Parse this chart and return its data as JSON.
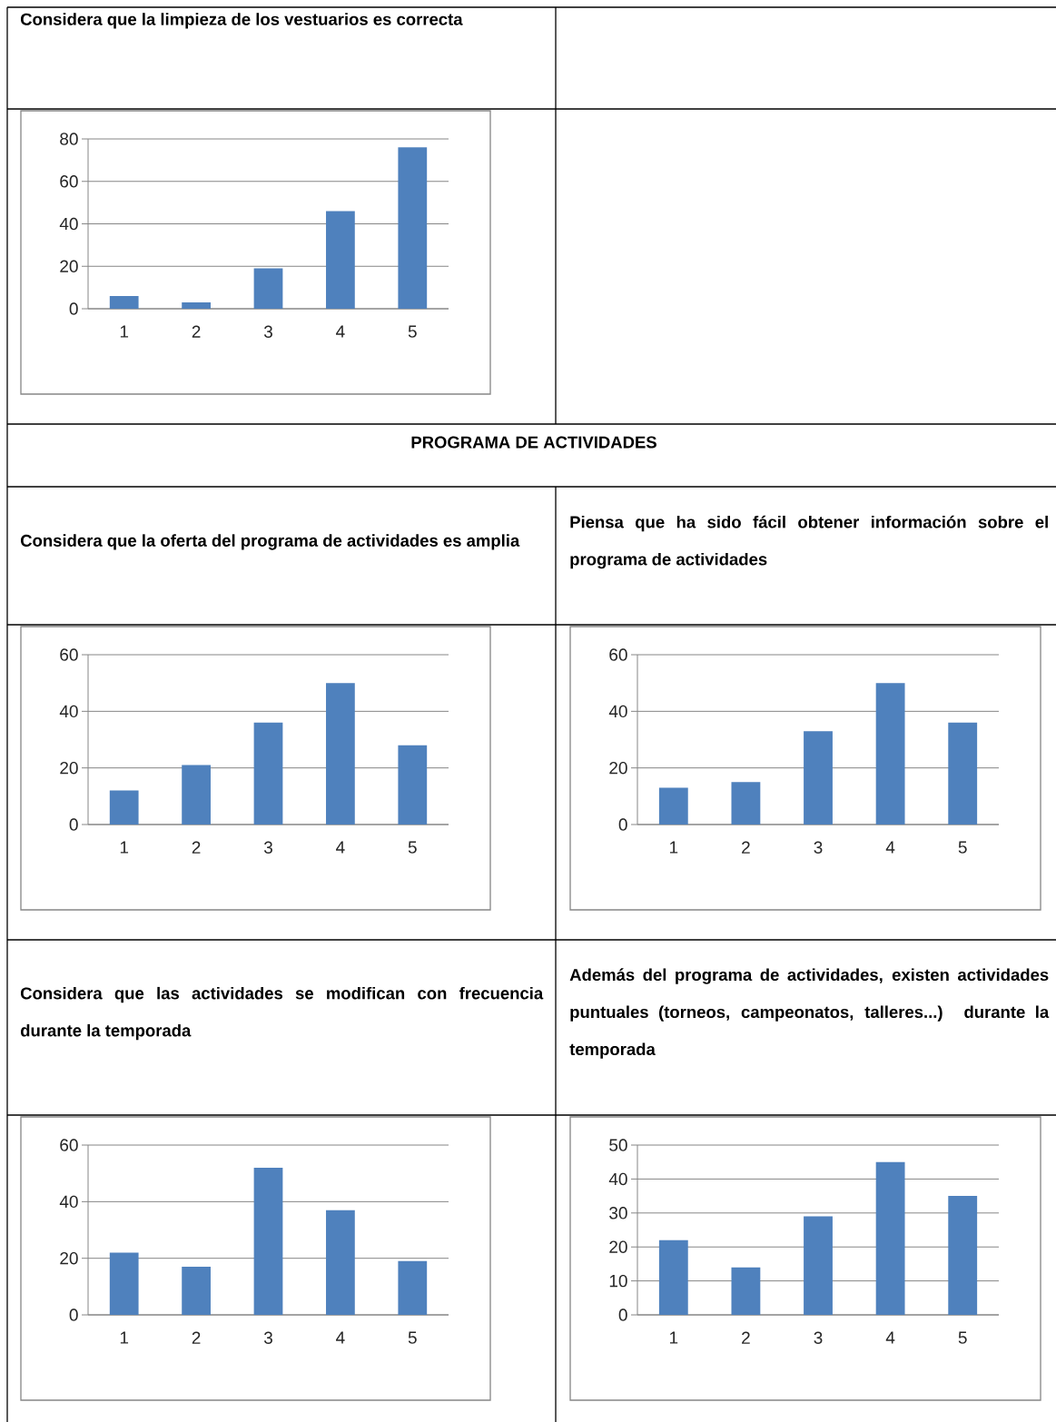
{
  "chart_data": [
    {
      "type": "bar",
      "title": "Considera que la limpieza de los vestuarios es correcta",
      "categories": [
        "1",
        "2",
        "3",
        "4",
        "5"
      ],
      "values": [
        6,
        3,
        19,
        46,
        76
      ],
      "color": "#4f81bd",
      "ylim": [
        0,
        80
      ],
      "yticks": [
        0,
        20,
        40,
        60,
        80
      ],
      "grid": "y"
    },
    {
      "type": "bar",
      "title": "Considera que la oferta del programa de actividades es amplia",
      "annotations": [
        "PROGRAMA DE ACTIVIDADES"
      ],
      "categories": [
        "1",
        "2",
        "3",
        "4",
        "5"
      ],
      "values": [
        12,
        21,
        36,
        50,
        28
      ],
      "color": "#4f81bd",
      "ylim": [
        0,
        60
      ],
      "yticks": [
        0,
        20,
        40,
        60
      ],
      "grid": "y"
    },
    {
      "type": "bar",
      "title": "Piensa que ha sido fácil obtener información sobre el programa de actividades",
      "categories": [
        "1",
        "2",
        "3",
        "4",
        "5"
      ],
      "values": [
        13,
        15,
        33,
        50,
        36
      ],
      "color": "#4f81bd",
      "ylim": [
        0,
        60
      ],
      "yticks": [
        0,
        20,
        40,
        60
      ],
      "grid": "y"
    },
    {
      "type": "bar",
      "title": "Considera que las actividades se modifican con frecuencia durante la temporada",
      "categories": [
        "1",
        "2",
        "3",
        "4",
        "5"
      ],
      "values": [
        22,
        17,
        52,
        37,
        19
      ],
      "color": "#4f81bd",
      "ylim": [
        0,
        60
      ],
      "yticks": [
        0,
        20,
        40,
        60
      ],
      "grid": "y"
    },
    {
      "type": "bar",
      "title": "Además del programa de actividades, existen actividades puntuales (torneos, campeonatos, talleres...) durante la temporada",
      "categories": [
        "1",
        "2",
        "3",
        "4",
        "5"
      ],
      "values": [
        22,
        14,
        29,
        45,
        35
      ],
      "color": "#4f81bd",
      "ylim": [
        0,
        50
      ],
      "yticks": [
        0,
        10,
        20,
        30,
        40,
        50
      ],
      "grid": "y"
    }
  ]
}
